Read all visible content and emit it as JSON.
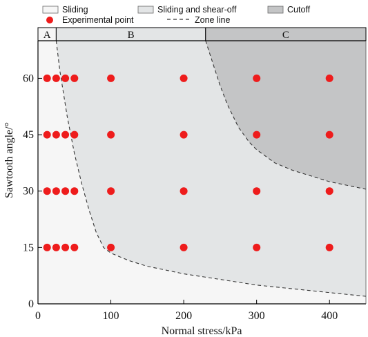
{
  "chart_data": {
    "type": "scatter",
    "xlabel": "Normal stress/kPa",
    "ylabel": "Sawtooth angle/°",
    "xlim": [
      0,
      450
    ],
    "ylim": [
      0,
      70
    ],
    "x_ticks": [
      0,
      100,
      200,
      300,
      400
    ],
    "y_ticks": [
      0,
      15,
      30,
      45,
      60
    ],
    "legend": {
      "placement": "top",
      "items": [
        {
          "label": "Sliding",
          "kind": "patch",
          "color": "#f6f6f6"
        },
        {
          "label": "Sliding and shear-off",
          "kind": "patch",
          "color": "#e3e5e6"
        },
        {
          "label": "Cutoff",
          "kind": "patch",
          "color": "#c4c5c6"
        },
        {
          "label": "Experimental point",
          "kind": "marker",
          "color": "#ee1c1c"
        },
        {
          "label": "Zone line",
          "kind": "dashed-line",
          "color": "#333333"
        }
      ]
    },
    "zones": [
      {
        "label": "A",
        "x_range": [
          0,
          25
        ],
        "color": "#f6f6f6"
      },
      {
        "label": "B",
        "x_range": [
          25,
          230
        ],
        "color": "#e3e5e6"
      },
      {
        "label": "C",
        "x_range": [
          230,
          450
        ],
        "color": "#c4c5c6"
      }
    ],
    "zone_lines": [
      {
        "name": "A-B boundary",
        "points": [
          [
            25,
            70
          ],
          [
            30,
            62
          ],
          [
            40,
            50
          ],
          [
            50,
            40
          ],
          [
            60,
            32
          ],
          [
            70,
            25
          ],
          [
            80,
            19
          ],
          [
            90,
            15
          ],
          [
            100,
            13.5
          ],
          [
            125,
            11.5
          ],
          [
            150,
            10
          ],
          [
            175,
            9
          ],
          [
            200,
            8
          ],
          [
            250,
            6.5
          ],
          [
            300,
            5
          ],
          [
            350,
            4
          ],
          [
            400,
            3
          ],
          [
            450,
            2
          ]
        ]
      },
      {
        "name": "B-C boundary",
        "points": [
          [
            230,
            70
          ],
          [
            240,
            64
          ],
          [
            250,
            58
          ],
          [
            260,
            53
          ],
          [
            275,
            47
          ],
          [
            290,
            43
          ],
          [
            300,
            41
          ],
          [
            325,
            37.5
          ],
          [
            350,
            35.5
          ],
          [
            375,
            34
          ],
          [
            400,
            32.5
          ],
          [
            425,
            31.5
          ],
          [
            450,
            30.5
          ]
        ]
      }
    ],
    "series": [
      {
        "name": "Experimental point",
        "color": "#ee1c1c",
        "points": [
          [
            12.5,
            15
          ],
          [
            25,
            15
          ],
          [
            37.5,
            15
          ],
          [
            50,
            15
          ],
          [
            100,
            15
          ],
          [
            200,
            15
          ],
          [
            300,
            15
          ],
          [
            400,
            15
          ],
          [
            12.5,
            30
          ],
          [
            25,
            30
          ],
          [
            37.5,
            30
          ],
          [
            50,
            30
          ],
          [
            100,
            30
          ],
          [
            200,
            30
          ],
          [
            300,
            30
          ],
          [
            400,
            30
          ],
          [
            12.5,
            45
          ],
          [
            25,
            45
          ],
          [
            37.5,
            45
          ],
          [
            50,
            45
          ],
          [
            100,
            45
          ],
          [
            200,
            45
          ],
          [
            300,
            45
          ],
          [
            400,
            45
          ],
          [
            12.5,
            60
          ],
          [
            25,
            60
          ],
          [
            37.5,
            60
          ],
          [
            50,
            60
          ],
          [
            100,
            60
          ],
          [
            200,
            60
          ],
          [
            300,
            60
          ],
          [
            400,
            60
          ]
        ]
      }
    ]
  }
}
